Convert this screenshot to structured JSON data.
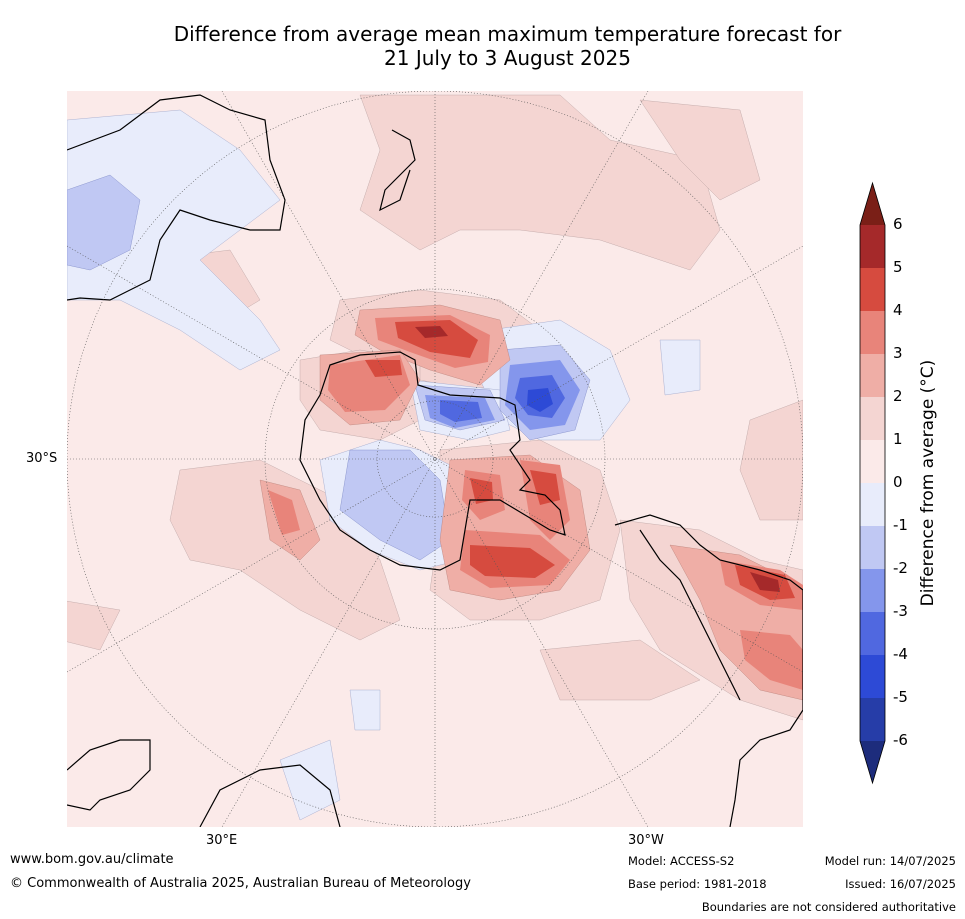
{
  "title": {
    "line1": "Difference from average mean maximum temperature forecast for",
    "line2": "21 July to 3 August 2025"
  },
  "map": {
    "projection": "polar-stereographic-south",
    "lat_label": "30°S",
    "lon_labels": [
      "30°E",
      "30°W"
    ]
  },
  "colorbar": {
    "label": "Difference from average (°C)",
    "ticks": [
      "6",
      "5",
      "4",
      "3",
      "2",
      "1",
      "0",
      "-1",
      "-2",
      "-3",
      "-4",
      "-5",
      "-6"
    ],
    "colors": [
      "#7a1f17",
      "#a5292a",
      "#d64b3f",
      "#e8847a",
      "#efaea6",
      "#f4d5d2",
      "#fbeae9",
      "#e8ecfb",
      "#c0c8f3",
      "#8496ec",
      "#5068e0",
      "#2d4ad6",
      "#263da8",
      "#1d2c7c"
    ]
  },
  "footer": {
    "website": "www.bom.gov.au/climate",
    "copyright": "© Commonwealth of Australia 2025, Australian Bureau of Meteorology",
    "model": "Model: ACCESS-S2",
    "base_period": "Base period: 1981-2018",
    "model_run": "Model run: 14/07/2025",
    "issued": "Issued: 16/07/2025",
    "disclaimer": "Boundaries are not considered authoritative"
  }
}
